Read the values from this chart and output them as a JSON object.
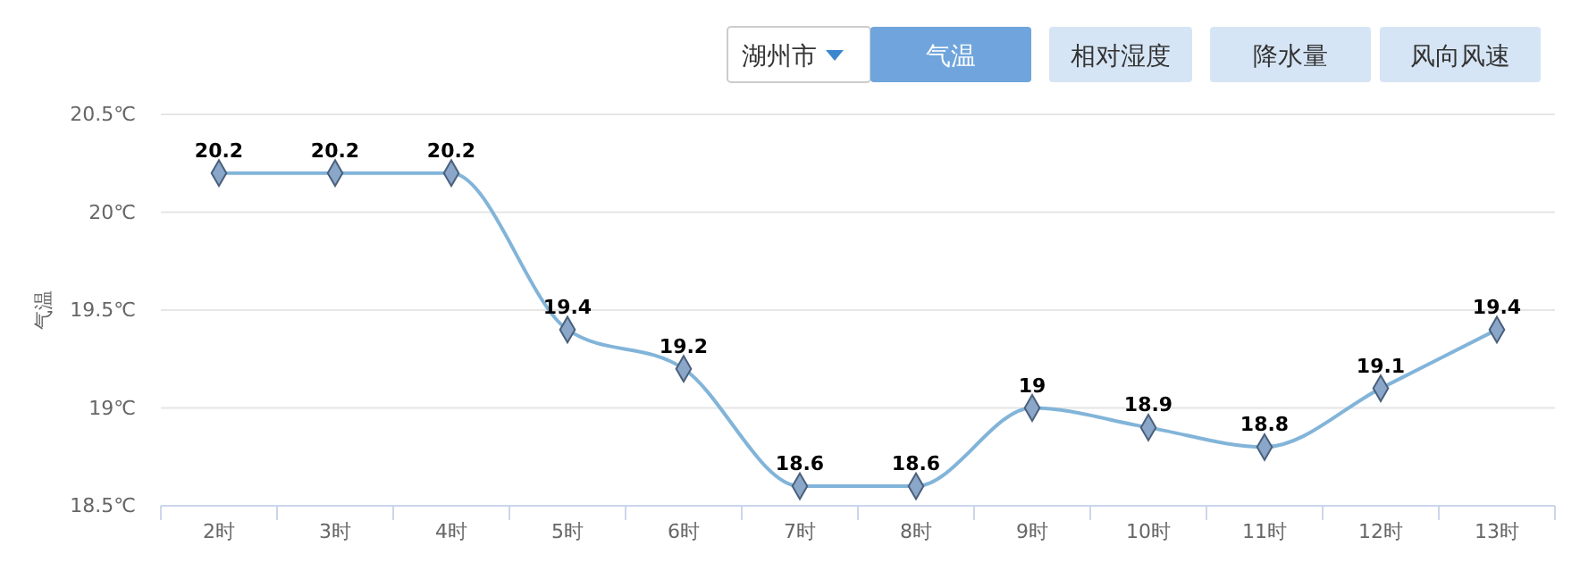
{
  "chart_data": {
    "type": "line",
    "ylabel": "气温",
    "annotations": [
      "湖州市",
      "气温",
      "相对湿度",
      "降水量",
      "风向风速"
    ],
    "categories": [
      "2时",
      "3时",
      "4时",
      "5时",
      "6时",
      "7时",
      "8时",
      "9时",
      "10时",
      "11时",
      "12时",
      "13时"
    ],
    "series": [
      {
        "color": "#82b4d9",
        "values": [
          20.2,
          20.2,
          20.2,
          19.4,
          19.2,
          18.6,
          18.6,
          19,
          18.9,
          18.8,
          19.1,
          19.4
        ]
      }
    ],
    "ylim": [
      18.5,
      20.5
    ],
    "yticks": [
      {
        "value": 18.5,
        "label": "18.5℃"
      },
      {
        "value": 19,
        "label": "19℃"
      },
      {
        "value": 19.5,
        "label": "19.5℃"
      },
      {
        "value": 20,
        "label": "20℃"
      },
      {
        "value": 20.5,
        "label": "20.5℃"
      }
    ],
    "grid": "y",
    "marker": "diamond",
    "line_style": "solid",
    "data_labels": true
  }
}
